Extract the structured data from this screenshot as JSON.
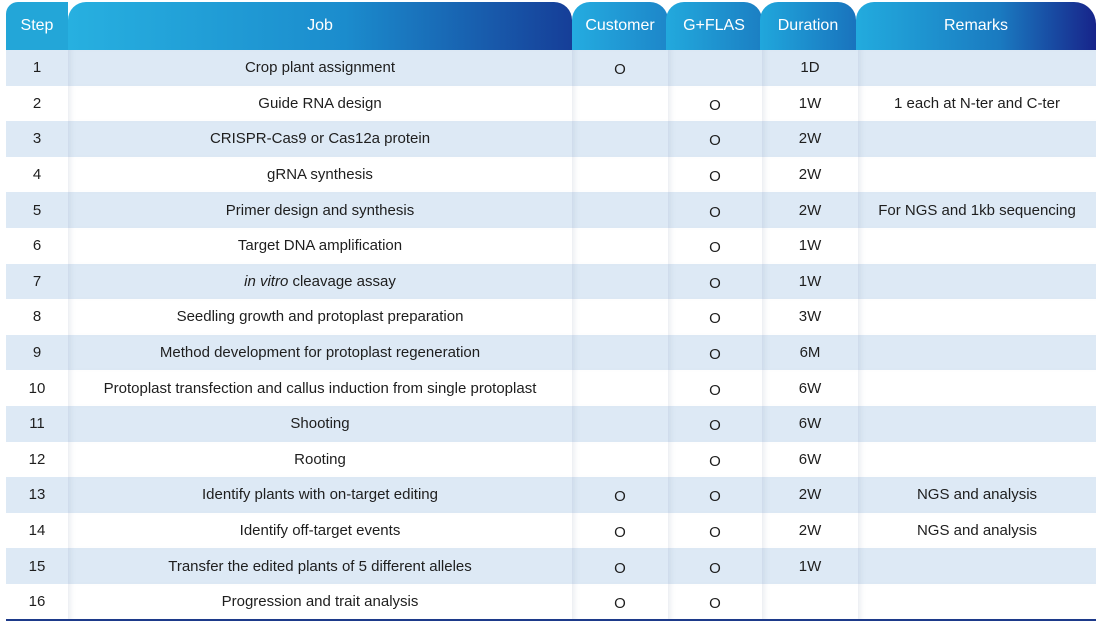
{
  "headers": {
    "step": "Step",
    "job": "Job",
    "customer": "Customer",
    "gflas": "G+FLAS",
    "duration": "Duration",
    "remarks": "Remarks"
  },
  "rows": [
    {
      "step": "1",
      "job": "Crop plant assignment",
      "job_prefix": "",
      "customer": "O",
      "gflas": "",
      "duration": "1D",
      "remarks": ""
    },
    {
      "step": "2",
      "job": "Guide RNA design",
      "job_prefix": "",
      "customer": "",
      "gflas": "O",
      "duration": "1W",
      "remarks": "1 each at N-ter and C-ter"
    },
    {
      "step": "3",
      "job": "CRISPR-Cas9 or Cas12a protein",
      "job_prefix": "",
      "customer": "",
      "gflas": "O",
      "duration": "2W",
      "remarks": ""
    },
    {
      "step": "4",
      "job": "gRNA synthesis",
      "job_prefix": "",
      "customer": "",
      "gflas": "O",
      "duration": "2W",
      "remarks": ""
    },
    {
      "step": "5",
      "job": "Primer design and synthesis",
      "job_prefix": "",
      "customer": "",
      "gflas": "O",
      "duration": "2W",
      "remarks": "For NGS and 1kb sequencing"
    },
    {
      "step": "6",
      "job": "Target DNA amplification",
      "job_prefix": "",
      "customer": "",
      "gflas": "O",
      "duration": "1W",
      "remarks": ""
    },
    {
      "step": "7",
      "job": " cleavage assay",
      "job_prefix": "in vitro",
      "customer": "",
      "gflas": "O",
      "duration": "1W",
      "remarks": ""
    },
    {
      "step": "8",
      "job": "Seedling growth and protoplast preparation",
      "job_prefix": "",
      "customer": "",
      "gflas": "O",
      "duration": "3W",
      "remarks": ""
    },
    {
      "step": "9",
      "job": "Method development for protoplast regeneration",
      "job_prefix": "",
      "customer": "",
      "gflas": "O",
      "duration": "6M",
      "remarks": ""
    },
    {
      "step": "10",
      "job": "Protoplast transfection and callus induction from single protoplast",
      "job_prefix": "",
      "customer": "",
      "gflas": "O",
      "duration": "6W",
      "remarks": ""
    },
    {
      "step": "11",
      "job": "Shooting",
      "job_prefix": "",
      "customer": "",
      "gflas": "O",
      "duration": "6W",
      "remarks": ""
    },
    {
      "step": "12",
      "job": "Rooting",
      "job_prefix": "",
      "customer": "",
      "gflas": "O",
      "duration": "6W",
      "remarks": ""
    },
    {
      "step": "13",
      "job": "Identify plants with on-target editing",
      "job_prefix": "",
      "customer": "O",
      "gflas": "O",
      "duration": "2W",
      "remarks": "NGS and analysis"
    },
    {
      "step": "14",
      "job": "Identify off-target events",
      "job_prefix": "",
      "customer": "O",
      "gflas": "O",
      "duration": "2W",
      "remarks": "NGS and analysis"
    },
    {
      "step": "15",
      "job": "Transfer the edited plants of 5 different alleles",
      "job_prefix": "",
      "customer": "O",
      "gflas": "O",
      "duration": "1W",
      "remarks": ""
    },
    {
      "step": "16",
      "job": "Progression and trait analysis",
      "job_prefix": "",
      "customer": "O",
      "gflas": "O",
      "duration": "",
      "remarks": ""
    }
  ],
  "colors": {
    "header_light": "#23a8dc",
    "header_dark": "#17248a",
    "row_stripe": "#dde9f5",
    "bottom_rule": "#1d3a8a"
  }
}
